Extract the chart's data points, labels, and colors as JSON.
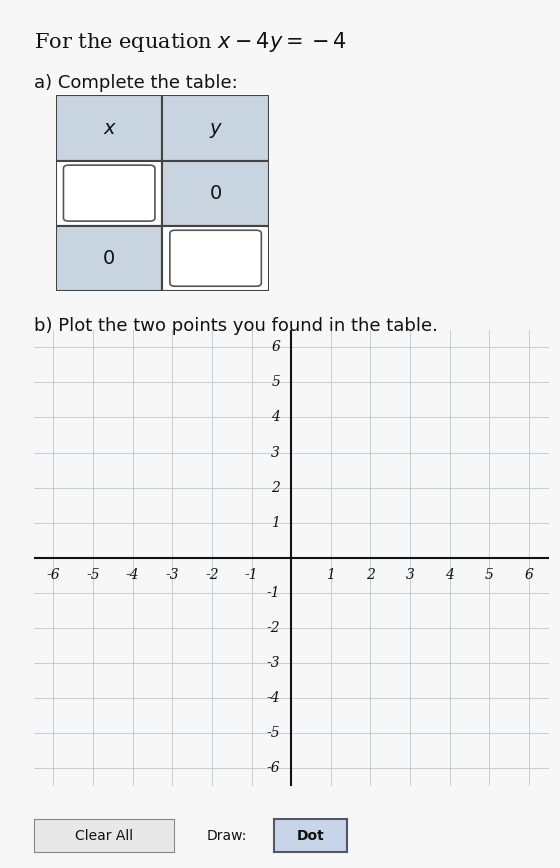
{
  "title_text": "For the equation $x - 4y = -4$",
  "part_a_text": "a) Complete the table:",
  "part_b_text": "b) Plot the two points you found in the table.",
  "table_headers": [
    "x",
    "y"
  ],
  "grid_range": [
    -6,
    6
  ],
  "grid_color": "#c8cdd4",
  "axis_color": "#111111",
  "background_color": "#f7f7f7",
  "cell_fill_header": "#c8d4e0",
  "cell_fill_given": "#c8d4e0",
  "cell_fill_blank": "#ffffff",
  "button_clear_text": "Clear All",
  "button_draw_text": "Draw:",
  "button_dot_text": "Dot",
  "font_size_title": 15,
  "font_size_labels": 13,
  "font_size_table": 14,
  "font_size_axis": 10
}
